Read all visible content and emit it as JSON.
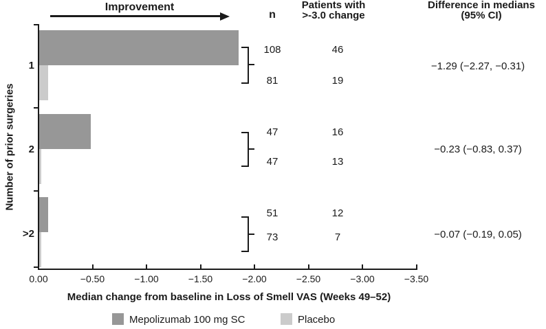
{
  "improvement_label": "Improvement",
  "columns": {
    "n": "n",
    "patients": "Patients with\n>-3.0 change",
    "difference": "Difference in medians\n(95% CI)"
  },
  "table": {
    "groups": [
      {
        "category": "1",
        "rows": [
          {
            "n": "108",
            "patients": "46"
          },
          {
            "n": "81",
            "patients": "19"
          }
        ],
        "difference": "−1.29 (−2.27, −0.31)"
      },
      {
        "category": "2",
        "rows": [
          {
            "n": "47",
            "patients": "16"
          },
          {
            "n": "47",
            "patients": "13"
          }
        ],
        "difference": "−0.23 (−0.83, 0.37)"
      },
      {
        "category": ">2",
        "rows": [
          {
            "n": "51",
            "patients": "12"
          },
          {
            "n": "73",
            "patients": "7"
          }
        ],
        "difference": "−0.07 (−0.19, 0.05)"
      }
    ]
  },
  "chart_data": {
    "type": "bar",
    "orientation": "horizontal",
    "xlabel": "Median change from baseline in Loss of Smell VAS (Weeks 49–52)",
    "ylabel": "Number of prior surgeries",
    "xlim": [
      0,
      -3.5
    ],
    "grid": false,
    "legend_position": "bottom",
    "x_ticks": [
      "0.00",
      "−0.50",
      "−1.00",
      "−1.50",
      "−2.00",
      "−2.50",
      "−3.00",
      "−3.50"
    ],
    "categories": [
      "1",
      "2",
      ">2"
    ],
    "series": [
      {
        "name": "Mepolizumab 100 mg SC",
        "color": "#979797",
        "values": [
          -1.85,
          -0.48,
          -0.08
        ]
      },
      {
        "name": "Placebo",
        "color": "#cbcbcb",
        "values": [
          -0.08,
          -0.02,
          -0.02
        ]
      }
    ],
    "annotations": {
      "arrow_text": "Improvement",
      "arrow_direction": "right"
    }
  },
  "legend": [
    {
      "label": "Mepolizumab 100 mg SC",
      "color": "#979797"
    },
    {
      "label": "Placebo",
      "color": "#cbcbcb"
    }
  ]
}
